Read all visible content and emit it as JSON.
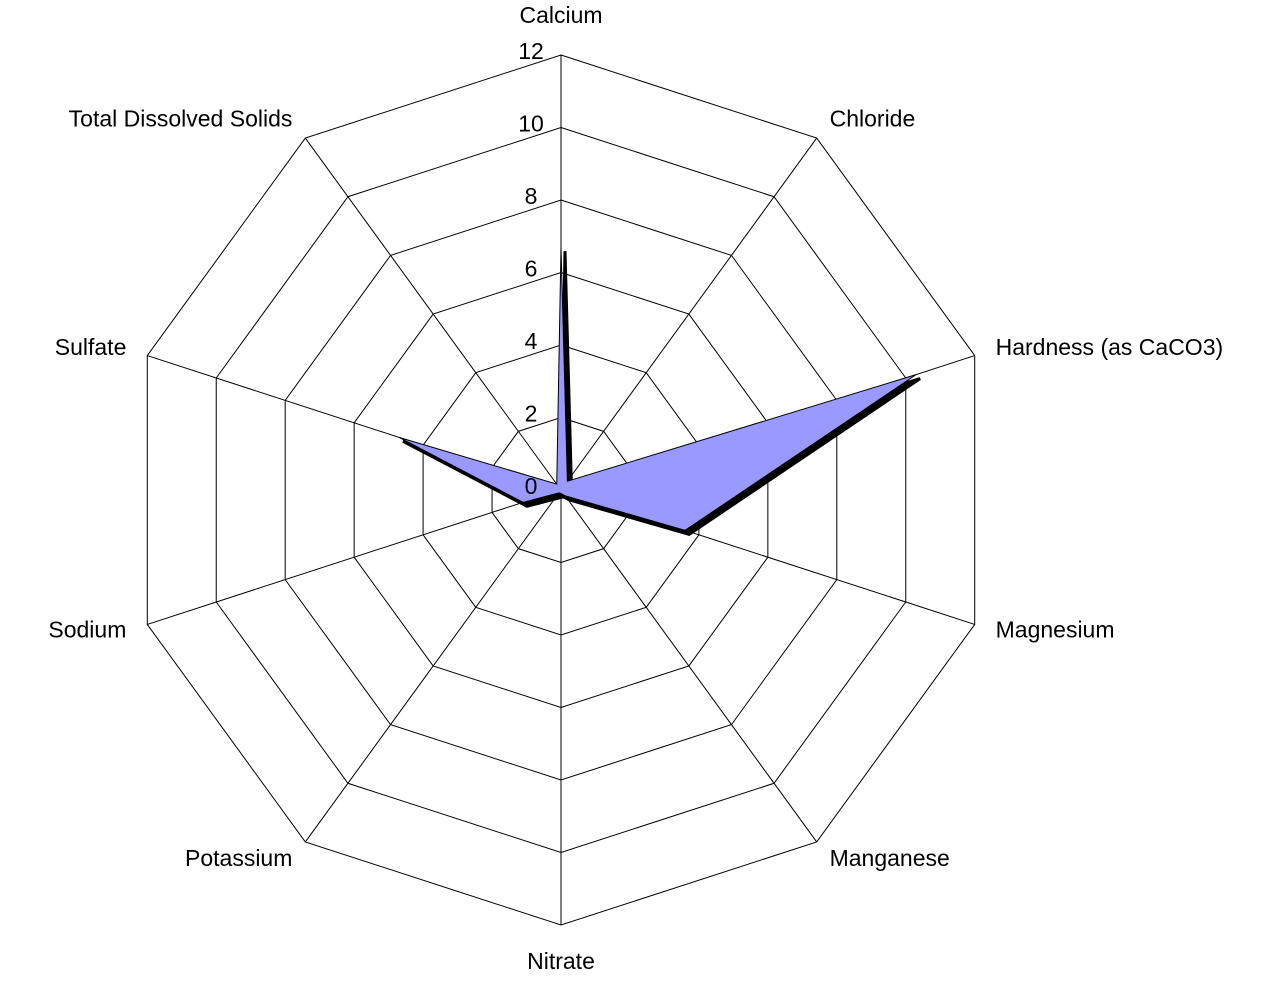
{
  "chart_data": {
    "type": "radar",
    "categories": [
      "Calcium",
      "Chloride",
      "Hardness (as CaCO3)",
      "Magnesium",
      "Manganese",
      "Nitrate",
      "Potassium",
      "Sodium",
      "Sulfate",
      "Total Dissolved Solids"
    ],
    "series": [
      {
        "color": "#9999ff",
        "values": [
          6.7,
          0.3,
          10.3,
          3.6,
          0.2,
          0.1,
          0.1,
          1.1,
          4.7,
          0.2
        ]
      }
    ],
    "ylim": [
      0,
      12
    ],
    "yticks": [
      0,
      2,
      4,
      6,
      8,
      10,
      12
    ],
    "grid": true
  }
}
